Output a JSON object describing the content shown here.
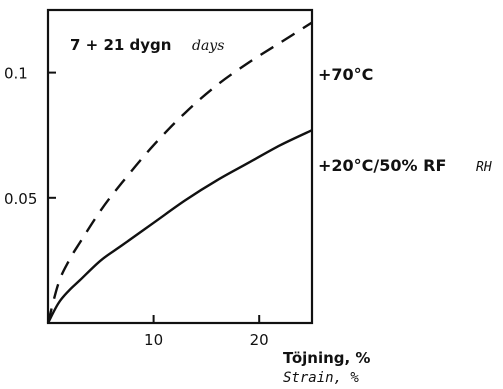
{
  "chart_data": {
    "type": "line",
    "annotation": {
      "label": "7 + 21 dygn",
      "label_en": "days"
    },
    "xlabel": "Töjning, %",
    "xlabel_en": "Strain, %",
    "ylabel": "",
    "xlim": [
      0,
      25
    ],
    "ylim": [
      0,
      0.125
    ],
    "x_ticks": [
      {
        "value": 10,
        "label": "10"
      },
      {
        "value": 20,
        "label": "20"
      }
    ],
    "y_ticks": [
      {
        "value": 0.05,
        "label": "0.05"
      },
      {
        "value": 0.1,
        "label": "0.1"
      }
    ],
    "grid": false,
    "series": [
      {
        "name": "+70°C",
        "style": "dashed",
        "x": [
          0,
          1,
          2,
          3,
          5,
          7,
          10,
          13,
          16,
          19,
          22,
          25
        ],
        "y": [
          0,
          0.016,
          0.025,
          0.032,
          0.045,
          0.056,
          0.071,
          0.084,
          0.095,
          0.104,
          0.112,
          0.12
        ]
      },
      {
        "name": "+20°C/50% RF",
        "name_en": "RH",
        "style": "solid",
        "x": [
          0,
          1,
          2,
          3,
          5,
          7,
          10,
          13,
          16,
          19,
          22,
          25
        ],
        "y": [
          0,
          0.008,
          0.013,
          0.017,
          0.025,
          0.031,
          0.04,
          0.049,
          0.057,
          0.064,
          0.071,
          0.077
        ]
      }
    ]
  }
}
